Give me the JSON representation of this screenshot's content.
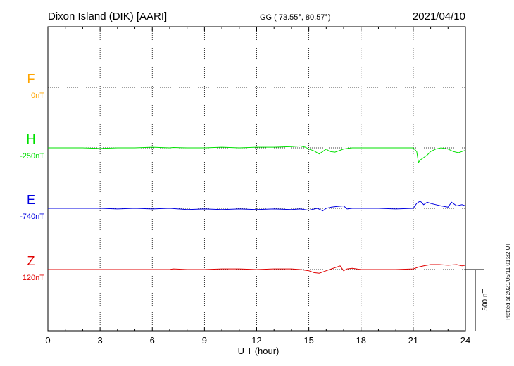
{
  "header": {
    "station": "Dixon Island (DIK)  [AARI]",
    "coords": "GG ( 73.55°,  80.57°)",
    "date": "2021/04/10"
  },
  "side_note": "Plotted at 2021/05/11 01:32 UT",
  "scale_bar_label": "500 nT",
  "chart_data": {
    "type": "line",
    "xlabel": "U T (hour)",
    "xlim": [
      0,
      24
    ],
    "x_ticks": [
      0,
      3,
      6,
      9,
      12,
      15,
      18,
      21,
      24
    ],
    "tick_labels": [
      "0",
      "3",
      "6",
      "9",
      "12",
      "15",
      "18",
      "21",
      "24"
    ],
    "ylabel": "",
    "scale_bar_nT": 500,
    "grid": "dotted",
    "series": [
      {
        "name": "F",
        "baseline_label": "0nT",
        "color": "#ffa500",
        "x": [],
        "y": []
      },
      {
        "name": "H",
        "baseline_label": "-250nT",
        "color": "#00e000",
        "x": [
          0,
          1,
          2,
          3,
          4,
          5,
          6,
          7,
          7.2,
          8,
          9,
          10,
          11,
          12,
          13,
          14,
          14.5,
          14.8,
          15,
          15.3,
          15.6,
          15.8,
          16,
          16.2,
          16.5,
          16.8,
          17,
          17.2,
          17.5,
          18,
          19,
          20,
          21,
          21.2,
          21.3,
          21.4,
          21.6,
          21.8,
          22,
          22.3,
          22.6,
          23,
          23.3,
          23.6,
          23.8,
          24
        ],
        "y": [
          0,
          0,
          0,
          -5,
          0,
          0,
          5,
          0,
          3,
          0,
          0,
          5,
          0,
          5,
          5,
          10,
          15,
          5,
          -10,
          -25,
          -50,
          -30,
          -10,
          -30,
          -35,
          -20,
          -10,
          -5,
          0,
          0,
          0,
          0,
          0,
          -30,
          -120,
          -100,
          -80,
          -60,
          -30,
          -10,
          0,
          -10,
          -30,
          -40,
          -30,
          -20
        ]
      },
      {
        "name": "E",
        "baseline_label": "-740nT",
        "color": "#0000e0",
        "x": [
          0,
          1,
          2,
          3,
          4,
          5,
          6,
          7,
          8,
          9,
          10,
          11,
          12,
          13,
          14,
          14.5,
          15,
          15.5,
          15.8,
          16,
          16.3,
          16.6,
          17,
          17.2,
          17.5,
          18,
          19,
          20,
          21,
          21.2,
          21.4,
          21.6,
          21.8,
          22,
          22.3,
          22.6,
          23,
          23.2,
          23.5,
          23.8,
          24
        ],
        "y": [
          0,
          0,
          0,
          0,
          -5,
          0,
          -5,
          0,
          -10,
          -5,
          -10,
          -5,
          -10,
          -5,
          -10,
          -5,
          -15,
          0,
          -20,
          0,
          10,
          15,
          20,
          -5,
          0,
          0,
          0,
          -5,
          0,
          40,
          60,
          30,
          50,
          40,
          30,
          20,
          10,
          50,
          20,
          30,
          20
        ]
      },
      {
        "name": "Z",
        "baseline_label": "120nT",
        "color": "#e00000",
        "x": [
          0,
          1,
          2,
          3,
          4,
          5,
          6,
          7,
          7.2,
          8,
          9,
          10,
          11,
          12,
          13,
          14,
          14.5,
          15,
          15.3,
          15.6,
          16,
          16.3,
          16.8,
          17,
          17.2,
          17.5,
          18,
          19,
          20,
          21,
          21.3,
          21.6,
          22,
          22.5,
          23,
          23.5,
          23.8,
          24
        ],
        "y": [
          0,
          0,
          0,
          0,
          0,
          0,
          0,
          0,
          5,
          0,
          0,
          5,
          5,
          0,
          5,
          5,
          0,
          -10,
          -25,
          -30,
          -10,
          5,
          30,
          -10,
          5,
          10,
          0,
          0,
          0,
          5,
          20,
          30,
          40,
          40,
          35,
          40,
          30,
          35
        ]
      }
    ]
  }
}
